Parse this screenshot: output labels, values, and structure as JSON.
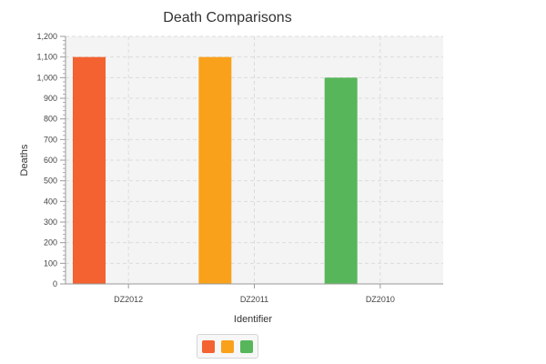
{
  "chart_data": {
    "type": "bar",
    "title": "Death Comparisons",
    "xlabel": "Identifier",
    "ylabel": "Deaths",
    "categories": [
      "DZ2012",
      "DZ2011",
      "DZ2010"
    ],
    "values": [
      1100,
      1100,
      1000
    ],
    "colors": [
      "#f36230",
      "#f9a11b",
      "#58b65a"
    ],
    "ylim": [
      0,
      1200
    ],
    "yticks": [
      0,
      100,
      200,
      300,
      400,
      500,
      600,
      700,
      800,
      900,
      1000,
      1100,
      1200
    ],
    "ytick_labels": [
      "0",
      "100",
      "200",
      "300",
      "400",
      "500",
      "600",
      "700",
      "800",
      "900",
      "1,000",
      "1,100",
      "1,200"
    ],
    "grid": true,
    "legend": "bottom"
  }
}
